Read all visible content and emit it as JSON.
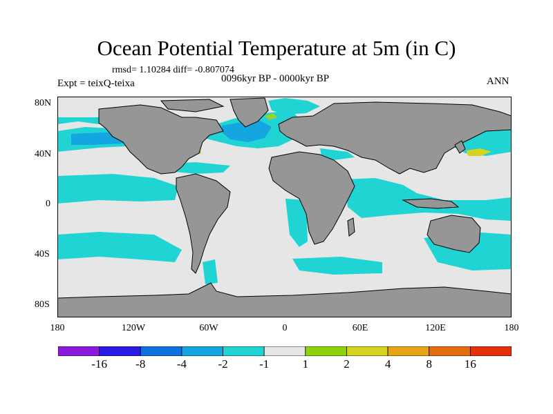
{
  "title": "Ocean Potential Temperature at 5m (in C)",
  "stats": "rmsd= 1.10284 diff= -0.807074",
  "experiment": "Expt = teixQ-teixa",
  "period": "0096kyr BP - 0000kyr BP",
  "season": "ANN",
  "lat_labels": [
    "80N",
    "40N",
    "0",
    "40S",
    "80S"
  ],
  "lon_labels": [
    "180",
    "120W",
    "60W",
    "0",
    "60E",
    "120E",
    "180"
  ],
  "colors": {
    "land": "#969696",
    "neutral": "#e6e6e6",
    "anom_m1": "#21d4d4",
    "anom_m2": "#15a5e0",
    "anom_pos1": "#9ad12a",
    "anom_pos2": "#d3d320",
    "coast": "#000000"
  },
  "colorbar": {
    "bins": [
      {
        "color": "#8a1ae0"
      },
      {
        "color": "#2a1ae6"
      },
      {
        "color": "#0f72e0"
      },
      {
        "color": "#15a5e0"
      },
      {
        "color": "#21d4d4"
      },
      {
        "color": "#e6e6e6"
      },
      {
        "color": "#8ed20e"
      },
      {
        "color": "#d3d320"
      },
      {
        "color": "#e6a614"
      },
      {
        "color": "#e66d0f"
      },
      {
        "color": "#e6300c"
      }
    ],
    "labels": [
      "-16",
      "-8",
      "-4",
      "-2",
      "-1",
      "1",
      "2",
      "4",
      "8",
      "16"
    ]
  }
}
